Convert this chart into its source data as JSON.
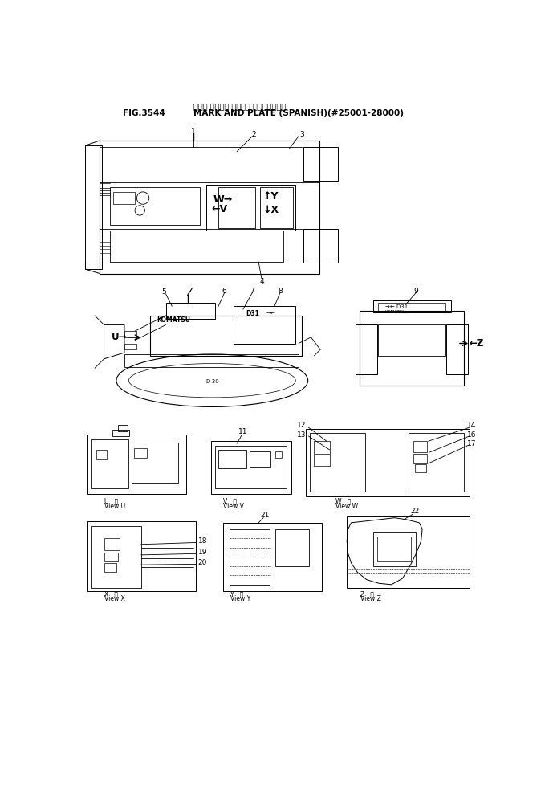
{
  "title_japanese": "マーク オヨビデ プレート （スペインゴ）",
  "title_english": "MARK AND PLATE (SPANISH)(#25001-28000)",
  "fig_number": "FIG.3544",
  "bg": "#ffffff",
  "lc": "#000000"
}
